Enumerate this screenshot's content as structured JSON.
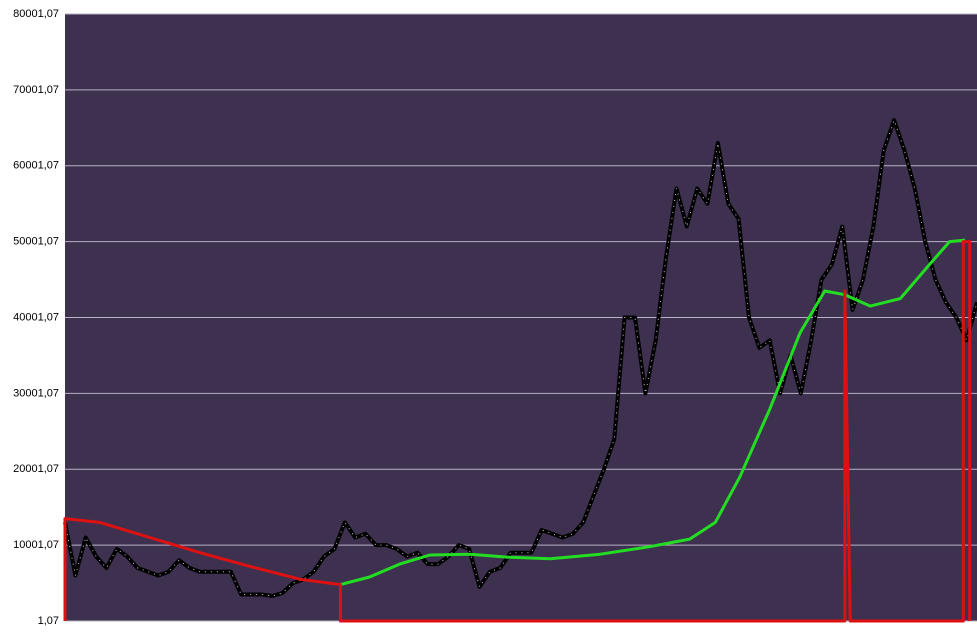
{
  "chart_data": {
    "type": "line",
    "ylim": [
      1.07,
      80001.07
    ],
    "yticks": [
      {
        "value": 1.07,
        "label": "1,07"
      },
      {
        "value": 10001.07,
        "label": "10001,07"
      },
      {
        "value": 20001.07,
        "label": "20001,07"
      },
      {
        "value": 30001.07,
        "label": "30001,07"
      },
      {
        "value": 40001.07,
        "label": "40001,07"
      },
      {
        "value": 50001.07,
        "label": "50001,07"
      },
      {
        "value": 60001.07,
        "label": "60001,07"
      },
      {
        "value": 70001.07,
        "label": "70001,07"
      },
      {
        "value": 80001.07,
        "label": "80001,07"
      }
    ],
    "grid": true,
    "xlim": [
      0,
      100
    ],
    "series": [
      {
        "color": "#000000",
        "values": [
          13000,
          6000,
          11000,
          8500,
          7000,
          9500,
          8500,
          7000,
          6500,
          6000,
          6500,
          8000,
          7000,
          6500,
          6500,
          6500,
          6500,
          3500,
          3500,
          3500,
          3300,
          3700,
          5000,
          5500,
          6500,
          8500,
          9500,
          13000,
          11000,
          11500,
          10000,
          10000,
          9500,
          8500,
          9000,
          7500,
          7500,
          8500,
          10000,
          9500,
          4500,
          6500,
          7000,
          9000,
          9000,
          9000,
          12000,
          11500,
          11000,
          11500,
          13000,
          16500,
          20000,
          24000,
          40000,
          40000,
          30000,
          37000,
          48000,
          57000,
          52000,
          57000,
          55000,
          63000,
          55000,
          53000,
          40000,
          36000,
          37000,
          30000,
          35000,
          30000,
          37000,
          45000,
          47000,
          52000,
          41000,
          45000,
          52000,
          62000,
          66000,
          62000,
          57000,
          50000,
          45000,
          42000,
          40000,
          37000,
          42000
        ]
      },
      {
        "color": "#22dd22",
        "x": [
          30.2,
          33.4,
          36.7,
          40.0,
          44.4,
          48.8,
          53.2,
          58.7,
          64.1,
          68.5,
          71.3,
          74.0,
          77.3,
          80.6,
          83.3,
          85.5,
          88.3,
          91.6,
          94.8,
          97.0,
          98.7
        ],
        "values": [
          4800,
          5800,
          7500,
          8700,
          8800,
          8400,
          8200,
          8800,
          9800,
          10800,
          13000,
          19000,
          28000,
          38000,
          43500,
          43000,
          41500,
          42500,
          47000,
          50000,
          50200
        ]
      },
      {
        "color": "#dd1111",
        "x": [
          0,
          0,
          3.8,
          9.3,
          14.8,
          20.3,
          25.8,
          30.2,
          30.2,
          85.5,
          85.5,
          86.1,
          98.5,
          98.5,
          99.2,
          99.2
        ],
        "values": [
          0,
          13500,
          13000,
          11000,
          9000,
          7200,
          5500,
          4800,
          0,
          0,
          43500,
          0,
          0,
          50000,
          50000,
          0
        ]
      }
    ]
  }
}
